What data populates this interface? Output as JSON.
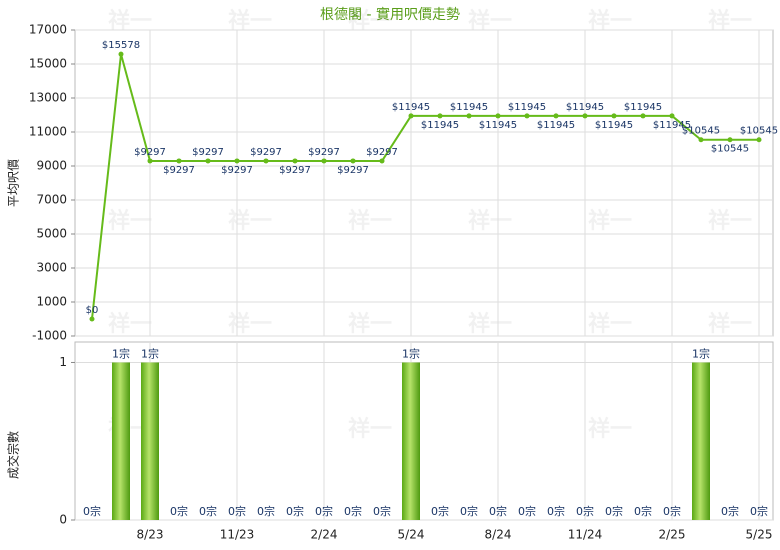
{
  "chart_data": [
    {
      "type": "line",
      "title": "根德閣 - 實用呎價走勢",
      "ylabel": "平均呎價",
      "color": "#66bb1a",
      "values": [
        0,
        15578,
        9297,
        9297,
        9297,
        9297,
        9297,
        9297,
        9297,
        9297,
        9297,
        11945,
        11945,
        11945,
        11945,
        11945,
        11945,
        11945,
        11945,
        11945,
        11945,
        10545,
        10545,
        10545
      ],
      "value_labels": [
        "$0",
        "$15578",
        "$9297",
        "$9297",
        "$9297",
        "$9297",
        "$9297",
        "$9297",
        "$9297",
        "$9297",
        "$9297",
        "$11945",
        "$11945",
        "$11945",
        "$11945",
        "$11945",
        "$11945",
        "$11945",
        "$11945",
        "$11945",
        "$11945",
        "$10545",
        "$10545",
        "$10545"
      ],
      "ylim": [
        -1000,
        17000
      ],
      "yticks": [
        -1000,
        1000,
        3000,
        5000,
        7000,
        9000,
        11000,
        13000,
        15000,
        17000
      ],
      "grid": true
    },
    {
      "type": "bar",
      "ylabel": "成交宗數",
      "color": "#6fbf1f",
      "categories": [
        null,
        null,
        "8/23",
        null,
        null,
        "11/23",
        null,
        null,
        "2/24",
        null,
        null,
        "5/24",
        null,
        null,
        "8/24",
        null,
        null,
        "11/24",
        null,
        null,
        "2/25",
        null,
        null,
        "5/25"
      ],
      "values": [
        0,
        1,
        1,
        0,
        0,
        0,
        0,
        0,
        0,
        0,
        0,
        1,
        0,
        0,
        0,
        0,
        0,
        0,
        0,
        0,
        0,
        1,
        0,
        0
      ],
      "value_labels": [
        "0宗",
        "1宗",
        "1宗",
        "0宗",
        "0宗",
        "0宗",
        "0宗",
        "0宗",
        "0宗",
        "0宗",
        "0宗",
        "1宗",
        "0宗",
        "0宗",
        "0宗",
        "0宗",
        "0宗",
        "0宗",
        "0宗",
        "0宗",
        "0宗",
        "1宗",
        "0宗",
        "0宗"
      ],
      "ylim": [
        0,
        1.13
      ],
      "yticks": [
        0,
        1
      ],
      "grid": true
    }
  ],
  "watermark": "祥一"
}
